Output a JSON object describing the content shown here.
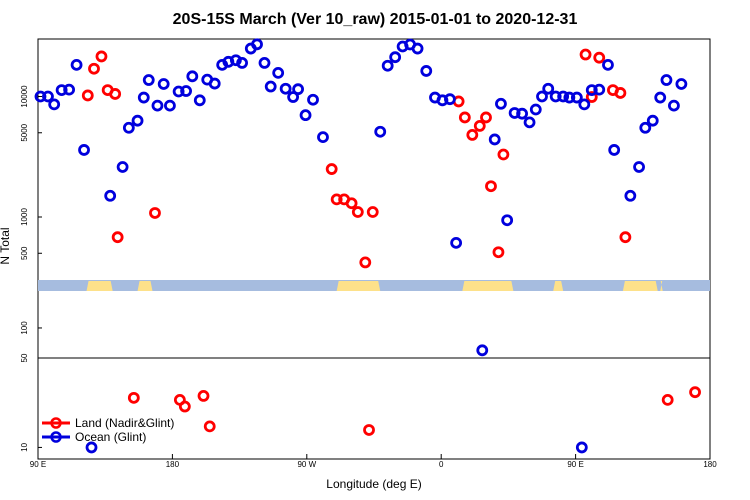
{
  "chart_data": {
    "type": "scatter",
    "title": "20S-15S March (Ver 10_raw)   2015-01-01 to 2020-12-31",
    "xlabel": "Longitude (deg E)",
    "ylabel": "N Total",
    "xlim": [
      -90,
      180
    ],
    "x_ticks": [
      {
        "value": -90,
        "label": "90 E"
      },
      {
        "value": -36,
        "label": "180"
      },
      {
        "value": 18,
        "label": "90 W"
      },
      {
        "value": 72,
        "label": "0"
      },
      {
        "value": 126,
        "label": "90 E"
      },
      {
        "value": 180,
        "label": "180"
      }
    ],
    "upper_panel": {
      "scale": "log",
      "ylim": [
        300,
        30000
      ],
      "y_ticks": [
        500,
        1000,
        5000,
        10000
      ]
    },
    "lower_panel": {
      "scale": "log",
      "ylim": [
        8,
        200
      ],
      "y_ticks": [
        10,
        50,
        100
      ]
    },
    "colors": {
      "land": "#ff0000",
      "ocean": "#0000dd",
      "land_strip": "#fde18a",
      "ocean_strip": "#a6bcdf"
    },
    "land_ranges": [
      [
        -70.5,
        -60
      ],
      [
        -50,
        -44
      ],
      [
        30,
        47.5
      ],
      [
        80.5,
        101
      ],
      [
        117,
        121
      ],
      [
        145,
        159
      ],
      [
        160,
        161
      ]
    ],
    "series": [
      {
        "name": "Land (Nadir&Glint)",
        "color": "#ff0000",
        "points": [
          [
            -70,
            10200
          ],
          [
            -67.5,
            17000
          ],
          [
            -64.5,
            21500
          ],
          [
            -62,
            11300
          ],
          [
            -59,
            10500
          ],
          [
            -58,
            680
          ],
          [
            -43,
            1080
          ],
          [
            -31,
            22
          ],
          [
            -33,
            25
          ],
          [
            -51.5,
            26
          ],
          [
            -23.5,
            27
          ],
          [
            -21,
            15
          ],
          [
            28,
            2500
          ],
          [
            30,
            1400
          ],
          [
            33,
            1400
          ],
          [
            36,
            1300
          ],
          [
            38.5,
            1100
          ],
          [
            41.5,
            420
          ],
          [
            44.5,
            1100
          ],
          [
            43,
            14
          ],
          [
            79,
            9100
          ],
          [
            81.5,
            6700
          ],
          [
            84.5,
            4800
          ],
          [
            87.5,
            5700
          ],
          [
            90,
            6700
          ],
          [
            92,
            1800
          ],
          [
            95,
            510
          ],
          [
            97,
            3300
          ],
          [
            132.5,
            9900
          ],
          [
            130,
            22300
          ],
          [
            135.5,
            21000
          ],
          [
            141,
            11300
          ],
          [
            144,
            10700
          ],
          [
            146,
            680
          ],
          [
            163,
            25
          ],
          [
            174,
            29
          ]
        ]
      },
      {
        "name": "Ocean (Glint)",
        "color": "#0000dd",
        "points": [
          [
            -89,
            10000
          ],
          [
            -86,
            10000
          ],
          [
            -83.5,
            8600
          ],
          [
            -80.5,
            11300
          ],
          [
            -77.5,
            11400
          ],
          [
            -74.5,
            18300
          ],
          [
            -71.5,
            3600
          ],
          [
            -68.5,
            10
          ],
          [
            -61,
            1500
          ],
          [
            -56,
            2600
          ],
          [
            -53.5,
            5500
          ],
          [
            -50,
            6300
          ],
          [
            -47.5,
            9800
          ],
          [
            -45.5,
            13700
          ],
          [
            -42,
            8400
          ],
          [
            -39.5,
            12700
          ],
          [
            -37,
            8400
          ],
          [
            -33.5,
            11000
          ],
          [
            -30.5,
            11100
          ],
          [
            -28,
            14700
          ],
          [
            -25,
            9300
          ],
          [
            -22,
            13800
          ],
          [
            -19,
            12800
          ],
          [
            -16,
            18300
          ],
          [
            -13.5,
            19400
          ],
          [
            -10.5,
            20000
          ],
          [
            -8,
            19000
          ],
          [
            -4.5,
            25000
          ],
          [
            -2,
            27100
          ],
          [
            1,
            19000
          ],
          [
            3.5,
            12100
          ],
          [
            6.5,
            15700
          ],
          [
            9.5,
            11600
          ],
          [
            12.5,
            9900
          ],
          [
            14.5,
            11500
          ],
          [
            17.5,
            7000
          ],
          [
            20.5,
            9400
          ],
          [
            24.5,
            4600
          ],
          [
            47.5,
            5100
          ],
          [
            50.5,
            18000
          ],
          [
            53.5,
            21200
          ],
          [
            56.5,
            26000
          ],
          [
            59.5,
            27000
          ],
          [
            62.5,
            25000
          ],
          [
            66,
            16300
          ],
          [
            69.5,
            9800
          ],
          [
            72.5,
            9300
          ],
          [
            75.5,
            9500
          ],
          [
            78,
            610
          ],
          [
            88.5,
            65
          ],
          [
            93.5,
            4400
          ],
          [
            96,
            8700
          ],
          [
            98.5,
            940
          ],
          [
            101.5,
            7300
          ],
          [
            104.5,
            7200
          ],
          [
            107.5,
            6100
          ],
          [
            110,
            7800
          ],
          [
            112.5,
            10000
          ],
          [
            115,
            11600
          ],
          [
            118,
            10000
          ],
          [
            121,
            10000
          ],
          [
            123.5,
            9800
          ],
          [
            126.5,
            9800
          ],
          [
            129.5,
            8600
          ],
          [
            132.5,
            11300
          ],
          [
            135.5,
            11400
          ],
          [
            139,
            18300
          ],
          [
            141.5,
            3600
          ],
          [
            128.5,
            10
          ],
          [
            148,
            1500
          ],
          [
            151.5,
            2600
          ],
          [
            154,
            5500
          ],
          [
            157,
            6300
          ],
          [
            160,
            9800
          ],
          [
            162.5,
            13700
          ],
          [
            165.5,
            8400
          ],
          [
            168.5,
            12700
          ]
        ]
      }
    ]
  }
}
